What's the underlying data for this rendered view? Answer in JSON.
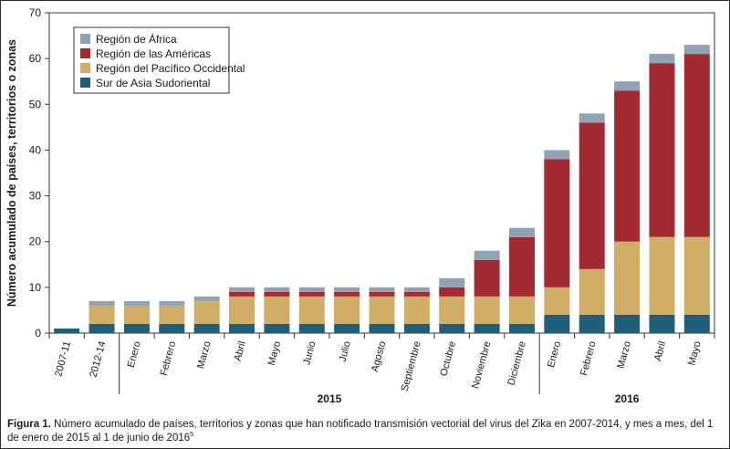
{
  "chart_data": {
    "type": "bar",
    "stacked": true,
    "ylabel": "Número acumulado de países, territorios o zonas",
    "ylim": [
      0,
      70
    ],
    "yticks": [
      0,
      10,
      20,
      30,
      40,
      50,
      60,
      70
    ],
    "grid": false,
    "legend_position": "top-left",
    "categories": [
      "2007-11",
      "2012-14",
      "Enero",
      "Febrero",
      "Marzo",
      "Abril",
      "Mayo",
      "Junio",
      "Julio",
      "Agosto",
      "Septiembre",
      "Octubre",
      "Noviembre",
      "Diciembre",
      "Enero",
      "Febrero",
      "Marzo",
      "Abril",
      "Mayo"
    ],
    "year_groups": [
      {
        "label": "2015",
        "start": 2,
        "end": 13
      },
      {
        "label": "2016",
        "start": 14,
        "end": 18
      }
    ],
    "series": [
      {
        "name": "Sur de Asia Sudoriental",
        "color": "#1f5f7a",
        "values": [
          1,
          2,
          2,
          2,
          2,
          2,
          2,
          2,
          2,
          2,
          2,
          2,
          2,
          2,
          4,
          4,
          4,
          4,
          4
        ]
      },
      {
        "name": "Región del Pacífico Occidental",
        "color": "#d1ae68",
        "values": [
          0,
          4,
          4,
          4,
          5,
          6,
          6,
          6,
          6,
          6,
          6,
          6,
          6,
          6,
          6,
          10,
          16,
          17,
          17
        ]
      },
      {
        "name": "Región de las Américas",
        "color": "#a32a31",
        "values": [
          0,
          0,
          0,
          0,
          0,
          1,
          1,
          1,
          1,
          1,
          1,
          2,
          8,
          13,
          28,
          32,
          33,
          38,
          40
        ]
      },
      {
        "name": "Región de África",
        "color": "#8fa3b5",
        "values": [
          0,
          1,
          1,
          1,
          1,
          1,
          1,
          1,
          1,
          1,
          1,
          2,
          2,
          2,
          2,
          2,
          2,
          2,
          2
        ]
      }
    ]
  },
  "legend_order": [
    3,
    2,
    1,
    0
  ],
  "caption": {
    "label": "Figura 1.",
    "text": " Número acumulado de países, territorios y zonas que han notificado transmisión vectorial del virus del Zika en 2007-2014, y mes a mes, del 1 de enero de 2015 al 1 de junio de 2016",
    "superscript": "5"
  }
}
